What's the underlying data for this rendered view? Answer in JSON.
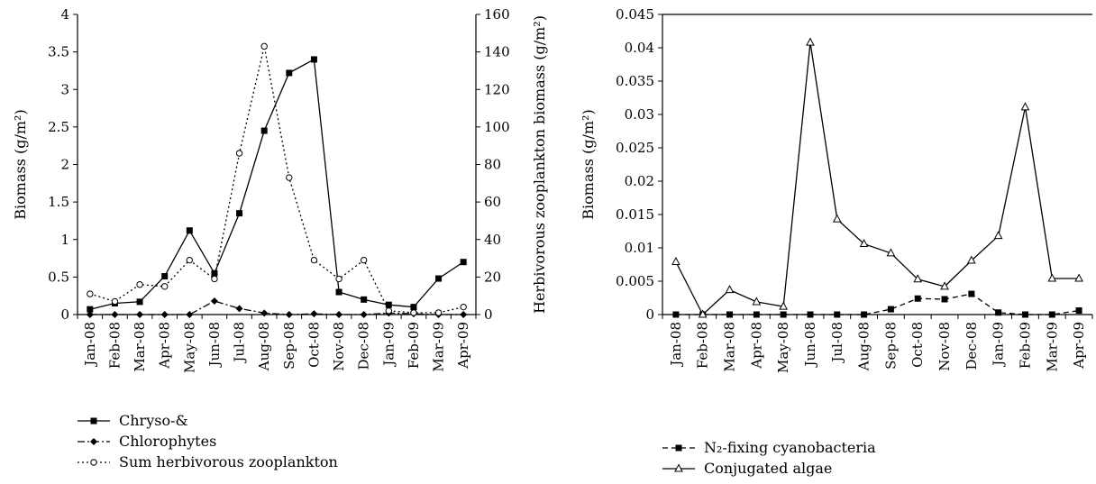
{
  "chart_data": [
    {
      "type": "line",
      "title": "",
      "ylabel": "Biomass (g/m²)",
      "y2label": "Herbivorous zooplankton biomass (g/m²)",
      "ylim": [
        0,
        4
      ],
      "y2lim": [
        0,
        160
      ],
      "yticks": [
        "0",
        "0.5",
        "1",
        "1.5",
        "2",
        "2.5",
        "3",
        "3.5",
        "4"
      ],
      "y2ticks": [
        "0",
        "20",
        "40",
        "60",
        "80",
        "100",
        "120",
        "140",
        "160"
      ],
      "categories": [
        "Jan-08",
        "Feb-08",
        "Mar-08",
        "Apr-08",
        "May-08",
        "Jun-08",
        "Jul-08",
        "Aug-08",
        "Sep-08",
        "Oct-08",
        "Nov-08",
        "Dec-08",
        "Jan-09",
        "Feb-09",
        "Mar-09",
        "Apr-09"
      ],
      "legend_position": "bottom-left",
      "series": [
        {
          "name": "Chryso-&",
          "axis": "left",
          "line": "solid",
          "marker": "square-filled",
          "values": [
            0.07,
            0.15,
            0.17,
            0.51,
            1.12,
            0.55,
            1.35,
            2.45,
            3.22,
            3.4,
            0.3,
            0.2,
            0.13,
            0.1,
            0.48,
            0.7
          ]
        },
        {
          "name": "Chlorophytes",
          "axis": "left",
          "line": "dashdot",
          "marker": "diamond-filled",
          "values": [
            0,
            0,
            0,
            0,
            0,
            0.18,
            0.08,
            0.02,
            0,
            0.01,
            0,
            0,
            0.02,
            0.01,
            0,
            0
          ]
        },
        {
          "name": "Sum herbivorous zooplankton",
          "axis": "right",
          "line": "dotted",
          "marker": "circle-open",
          "values": [
            11,
            7,
            16,
            15,
            29,
            19,
            86,
            143,
            73,
            29,
            19,
            29,
            2,
            1,
            1,
            4
          ]
        }
      ]
    },
    {
      "type": "line",
      "title": "",
      "ylabel": "Biomass (g/m²)",
      "ylim": [
        0,
        0.045
      ],
      "yticks": [
        "0",
        "0.005",
        "0.01",
        "0.015",
        "0.02",
        "0.025",
        "0.03",
        "0.035",
        "0.04",
        "0.045"
      ],
      "categories": [
        "Jan-08",
        "Feb-08",
        "Mar-08",
        "Apr-08",
        "May-08",
        "Jun-08",
        "Jul-08",
        "Aug-08",
        "Sep-08",
        "Oct-08",
        "Nov-08",
        "Dec-08",
        "Jan-09",
        "Feb-09",
        "Mar-09",
        "Apr-09"
      ],
      "legend_position": "bottom-left",
      "series": [
        {
          "name": "N₂-fixing cyanobacteria",
          "line": "dashed",
          "marker": "square-filled",
          "values": [
            0,
            0,
            0,
            0,
            0,
            0,
            0,
            0,
            0.0008,
            0.0024,
            0.0023,
            0.0031,
            0.0003,
            0,
            0,
            0.0006
          ]
        },
        {
          "name": "Conjugated algae",
          "line": "solid",
          "marker": "triangle-open",
          "values": [
            0.0079,
            0.0,
            0.0037,
            0.0019,
            0.0012,
            0.0408,
            0.0143,
            0.0106,
            0.0092,
            0.0053,
            0.0042,
            0.0081,
            0.0118,
            0.0311,
            0.0054,
            0.0054
          ]
        }
      ]
    }
  ]
}
